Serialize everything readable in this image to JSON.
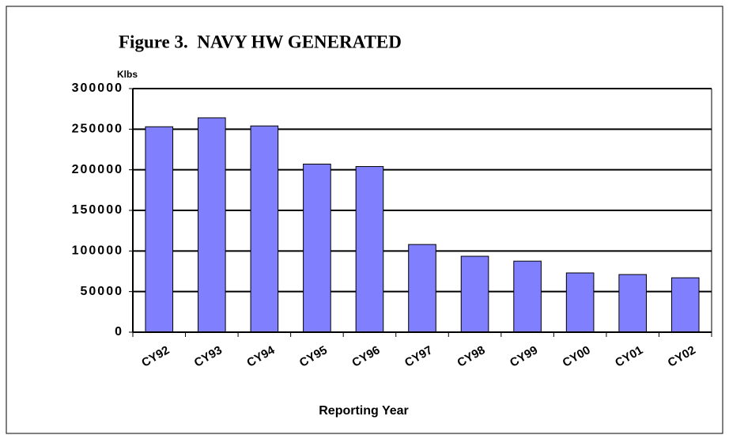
{
  "chart_data": {
    "type": "bar",
    "title": "Figure 3.  NAVY HW GENERATED",
    "y_label": "Klbs",
    "x_label": "Reporting Year",
    "categories": [
      "CY92",
      "CY93",
      "CY94",
      "CY95",
      "CY96",
      "CY97",
      "CY98",
      "CY99",
      "CY00",
      "CY01",
      "CY02"
    ],
    "values": [
      253000,
      264000,
      254000,
      207000,
      204000,
      108000,
      93500,
      87500,
      73000,
      71000,
      67000
    ],
    "color": "#8080ff",
    "ylim": [
      0,
      300000
    ],
    "yticks": [
      0,
      50000,
      100000,
      150000,
      200000,
      250000,
      300000
    ],
    "grid": true
  }
}
